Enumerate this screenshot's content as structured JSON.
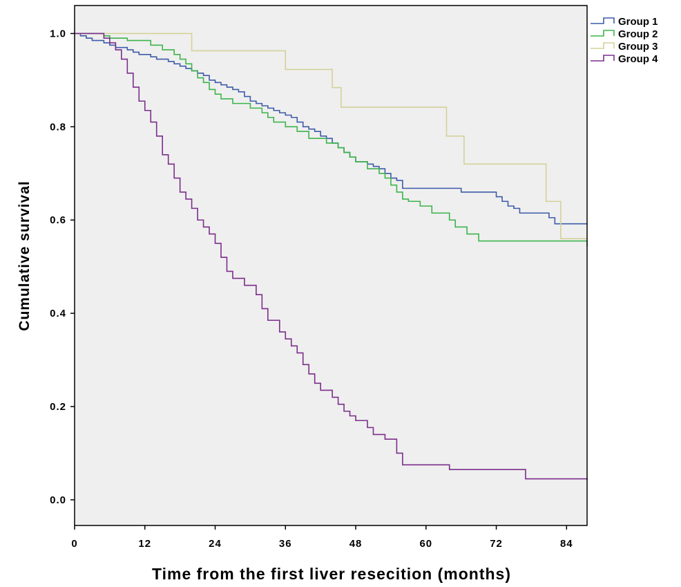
{
  "chart_data": {
    "type": "line",
    "step": true,
    "xlabel": "Time from the first liver resecition (months)",
    "ylabel": "Cumulative survival",
    "xlim": [
      0,
      87.5
    ],
    "ylim": [
      -0.055,
      1.06
    ],
    "x_ticks": [
      0,
      12,
      24,
      36,
      48,
      60,
      72,
      84
    ],
    "x_tick_labels": [
      "0",
      "12",
      "24",
      "36",
      "48",
      "60",
      "72",
      "84"
    ],
    "y_ticks": [
      0.0,
      0.2,
      0.4,
      0.6,
      0.8,
      1.0
    ],
    "y_tick_labels": [
      "0.0",
      "0.2",
      "0.4",
      "0.6",
      "0.8",
      "1.0"
    ],
    "background": "#efefef",
    "legend_position": "right",
    "series": [
      {
        "name": "Group 1",
        "color": "#3d5ba8",
        "x": [
          0,
          1,
          2,
          3,
          5,
          6,
          7,
          9,
          10,
          11,
          13,
          14,
          16,
          17,
          18,
          19,
          20,
          21,
          22,
          23,
          24,
          25,
          26,
          27,
          28,
          29,
          30,
          31,
          32,
          33,
          34,
          35,
          36,
          37,
          38,
          39,
          40,
          41,
          42,
          43,
          44,
          45,
          46,
          47,
          48,
          49,
          50,
          51,
          52,
          53,
          54,
          55,
          56,
          60,
          66,
          71,
          72,
          73,
          74,
          75,
          76,
          81,
          82,
          87.5
        ],
        "y": [
          1.0,
          0.995,
          0.99,
          0.985,
          0.98,
          0.975,
          0.97,
          0.965,
          0.96,
          0.955,
          0.95,
          0.945,
          0.94,
          0.935,
          0.93,
          0.925,
          0.92,
          0.915,
          0.91,
          0.9,
          0.895,
          0.89,
          0.885,
          0.88,
          0.875,
          0.865,
          0.855,
          0.85,
          0.845,
          0.84,
          0.835,
          0.83,
          0.825,
          0.82,
          0.81,
          0.8,
          0.795,
          0.79,
          0.78,
          0.775,
          0.765,
          0.755,
          0.745,
          0.735,
          0.725,
          0.725,
          0.72,
          0.715,
          0.71,
          0.7,
          0.69,
          0.685,
          0.668,
          0.668,
          0.66,
          0.66,
          0.65,
          0.64,
          0.63,
          0.625,
          0.615,
          0.605,
          0.592,
          0.592
        ]
      },
      {
        "name": "Group 2",
        "color": "#3cb44b",
        "x": [
          0,
          5,
          6,
          9,
          13,
          15,
          17,
          18,
          19,
          20,
          21,
          22,
          23,
          24,
          25,
          27,
          30,
          32,
          33,
          34,
          36,
          38,
          40,
          43,
          45,
          46,
          47,
          48,
          50,
          52,
          53,
          54,
          55,
          56,
          57,
          59,
          61,
          64,
          65,
          67,
          69,
          87.5
        ],
        "y": [
          1.0,
          0.995,
          0.99,
          0.985,
          0.975,
          0.965,
          0.955,
          0.945,
          0.935,
          0.92,
          0.905,
          0.895,
          0.88,
          0.87,
          0.86,
          0.85,
          0.84,
          0.83,
          0.82,
          0.81,
          0.8,
          0.79,
          0.775,
          0.765,
          0.755,
          0.745,
          0.735,
          0.725,
          0.71,
          0.7,
          0.69,
          0.675,
          0.66,
          0.645,
          0.64,
          0.63,
          0.615,
          0.6,
          0.585,
          0.57,
          0.555,
          0.543
        ]
      },
      {
        "name": "Group 3",
        "color": "#d4d19a",
        "x": [
          0,
          20,
          36,
          44,
          45.5,
          63.5,
          66.5,
          80.5,
          83,
          87.5
        ],
        "y": [
          1.0,
          0.963,
          0.923,
          0.884,
          0.842,
          0.78,
          0.72,
          0.64,
          0.56,
          0.56
        ]
      },
      {
        "name": "Group 4",
        "color": "#7b2d8b",
        "x": [
          0,
          5,
          6,
          7,
          8,
          9,
          10,
          11,
          12,
          13,
          14,
          15,
          16,
          17,
          18,
          19,
          20,
          21,
          22,
          23,
          24,
          25,
          26,
          27,
          29,
          31,
          32,
          33,
          35,
          36,
          37,
          38,
          39,
          40,
          41,
          42,
          44,
          45,
          46,
          47,
          48,
          50,
          51,
          53,
          55,
          56,
          64,
          77,
          87.5
        ],
        "y": [
          1.0,
          0.99,
          0.98,
          0.965,
          0.945,
          0.915,
          0.885,
          0.855,
          0.835,
          0.81,
          0.78,
          0.74,
          0.72,
          0.69,
          0.66,
          0.645,
          0.625,
          0.6,
          0.585,
          0.57,
          0.55,
          0.52,
          0.49,
          0.475,
          0.46,
          0.44,
          0.41,
          0.385,
          0.36,
          0.345,
          0.33,
          0.315,
          0.29,
          0.27,
          0.25,
          0.235,
          0.22,
          0.205,
          0.19,
          0.18,
          0.17,
          0.155,
          0.14,
          0.13,
          0.1,
          0.075,
          0.065,
          0.045,
          0.043
        ]
      }
    ]
  }
}
